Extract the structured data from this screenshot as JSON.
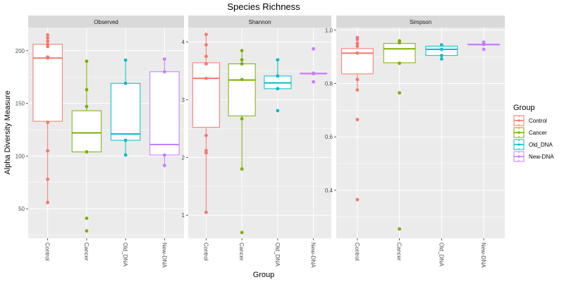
{
  "chart_data": {
    "type": "box",
    "title": "Species Richness",
    "xlabel": "Group",
    "ylabel": "Alpha Diversity Measure",
    "categories": [
      "Control",
      "Cancer",
      "Old_DNA",
      "New-DNA"
    ],
    "legend": {
      "title": "Group",
      "placement": "right",
      "entries": [
        "Control",
        "Cancer",
        "Old_DNA",
        "New-DNA"
      ]
    },
    "colors": {
      "Control": "#F8766D",
      "Cancer": "#7CAE00",
      "Old_DNA": "#00BFC4",
      "New-DNA": "#C77CFF",
      "panel_bg": "#EBEBEB",
      "strip_bg": "#D9D9D9",
      "grid": "#FFFFFF"
    },
    "grid": true,
    "facets": [
      {
        "name": "Observed",
        "ylim": [
          22,
          222
        ],
        "yticks": [
          50,
          100,
          150,
          200
        ],
        "groups": [
          {
            "category": "Control",
            "q1": 133,
            "median": 193,
            "q3": 206,
            "whisker_low": 56,
            "whisker_high": 215,
            "points": [
              215,
              212,
              209,
              206,
              204,
              194,
              193,
              132,
              105,
              78,
              56
            ]
          },
          {
            "category": "Cancer",
            "q1": 104,
            "median": 122,
            "q3": 143,
            "whisker_low": 104,
            "whisker_high": 190,
            "points": [
              190,
              163,
              147,
              104,
              41,
              29
            ]
          },
          {
            "category": "Old_DNA",
            "q1": 115,
            "median": 121,
            "q3": 169,
            "whisker_low": 101,
            "whisker_high": 191,
            "points": [
              191,
              169,
              115,
              101
            ]
          },
          {
            "category": "New-DNA",
            "q1": 101,
            "median": 111,
            "q3": 180,
            "whisker_low": 91,
            "whisker_high": 192,
            "points": [
              192,
              180,
              101,
              91
            ]
          }
        ]
      },
      {
        "name": "Shannon",
        "ylim": [
          0.6,
          4.25
        ],
        "yticks": [
          1,
          2,
          3,
          4
        ],
        "groups": [
          {
            "category": "Control",
            "q1": 2.52,
            "median": 3.37,
            "q3": 3.64,
            "whisker_low": 1.05,
            "whisker_high": 4.13,
            "points": [
              4.13,
              3.95,
              3.75,
              3.62,
              3.37,
              2.38,
              2.12,
              2.08,
              1.05
            ]
          },
          {
            "category": "Cancer",
            "q1": 2.72,
            "median": 3.34,
            "q3": 3.62,
            "whisker_low": 1.8,
            "whisker_high": 3.85,
            "points": [
              3.85,
              3.69,
              3.62,
              3.35,
              2.67,
              1.8,
              0.7
            ]
          },
          {
            "category": "Old_DNA",
            "q1": 3.19,
            "median": 3.29,
            "q3": 3.41,
            "whisker_low": 3.19,
            "whisker_high": 3.69,
            "points": [
              3.69,
              3.41,
              3.19,
              2.81
            ]
          },
          {
            "category": "New-DNA",
            "q1": 3.45,
            "median": 3.45,
            "q3": 3.46,
            "whisker_low": 3.45,
            "whisker_high": 3.46,
            "points": [
              3.88,
              3.46,
              3.45,
              3.31
            ]
          }
        ]
      },
      {
        "name": "Simpson",
        "ylim": [
          0.22,
          1.01
        ],
        "yticks": [
          0.4,
          0.6,
          0.8,
          1.0
        ],
        "groups": [
          {
            "category": "Control",
            "q1": 0.836,
            "median": 0.914,
            "q3": 0.931,
            "whisker_low": 0.776,
            "whisker_high": 0.972,
            "points": [
              0.972,
              0.965,
              0.95,
              0.94,
              0.914,
              0.815,
              0.776,
              0.665,
              0.365
            ]
          },
          {
            "category": "Cancer",
            "q1": 0.878,
            "median": 0.93,
            "q3": 0.95,
            "whisker_low": 0.878,
            "whisker_high": 0.96,
            "points": [
              0.96,
              0.953,
              0.876,
              0.765,
              0.255
            ]
          },
          {
            "category": "Old_DNA",
            "q1": 0.905,
            "median": 0.928,
            "q3": 0.94,
            "whisker_low": 0.892,
            "whisker_high": 0.945,
            "points": [
              0.945,
              0.928,
              0.905,
              0.892
            ]
          },
          {
            "category": "New-DNA",
            "q1": 0.945,
            "median": 0.946,
            "q3": 0.948,
            "whisker_low": 0.945,
            "whisker_high": 0.955,
            "points": [
              0.955,
              0.948,
              0.946,
              0.928
            ]
          }
        ]
      }
    ]
  }
}
